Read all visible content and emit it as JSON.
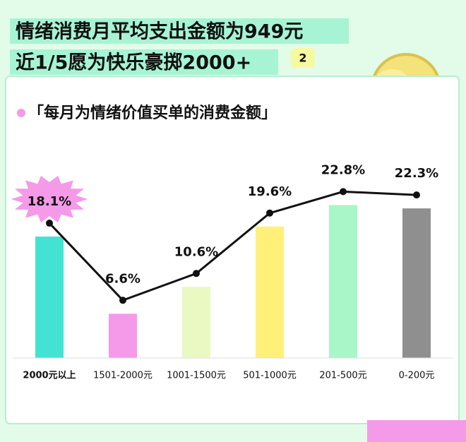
{
  "chart_data": {
    "type": "bar-line",
    "title_lines": [
      "情绪消费月平均支出金额为949元",
      "近1/5愿为快乐豪掷2000+"
    ],
    "badge": "2",
    "subtitle": "「每月为情绪价值买单的消费金额」",
    "categories": [
      "2000元以上",
      "1501-2000元",
      "1001-1500元",
      "501-1000元",
      "201-500元",
      "0-200元"
    ],
    "values": [
      18.1,
      6.6,
      10.6,
      19.6,
      22.8,
      22.3
    ],
    "value_labels": [
      "18.1%",
      "6.6%",
      "10.6%",
      "19.6%",
      "22.8%",
      "22.3%"
    ],
    "colors": [
      "#43e2d3",
      "#f59ae9",
      "#eaf8c2",
      "#fff07a",
      "#a9f6c9",
      "#8f8f8f"
    ],
    "line_color": "#111111"
  }
}
